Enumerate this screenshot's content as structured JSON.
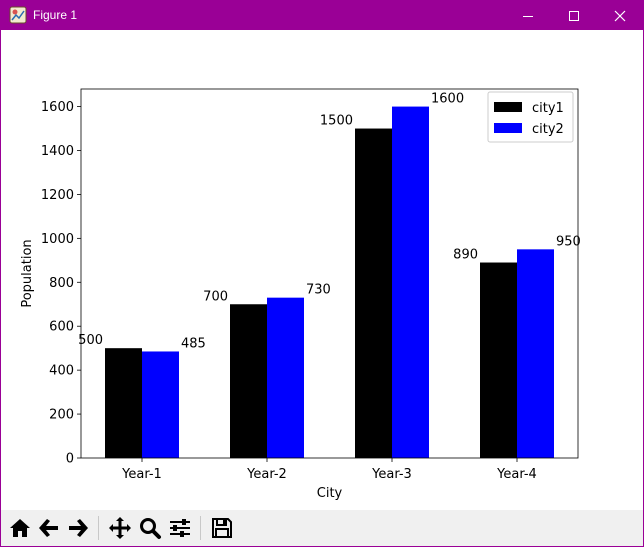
{
  "window": {
    "title": "Figure 1"
  },
  "icons": {
    "app": "matplotlib-figure-icon",
    "minimize": "minimize-icon",
    "maximize": "maximize-icon",
    "close": "close-icon"
  },
  "toolbar": {
    "buttons": [
      {
        "name": "home-icon",
        "action": "Home"
      },
      {
        "name": "back-arrow-icon",
        "action": "Back"
      },
      {
        "name": "forward-arrow-icon",
        "action": "Forward"
      },
      {
        "name": "pan-icon",
        "action": "Pan"
      },
      {
        "name": "zoom-icon",
        "action": "Zoom"
      },
      {
        "name": "configure-subplots-icon",
        "action": "Subplots"
      },
      {
        "name": "save-icon",
        "action": "Save"
      }
    ]
  },
  "chart_data": {
    "type": "bar",
    "categories": [
      "Year-1",
      "Year-2",
      "Year-3",
      "Year-4"
    ],
    "series": [
      {
        "name": "city1",
        "color": "#000000",
        "values": [
          500,
          700,
          1500,
          890
        ]
      },
      {
        "name": "city2",
        "color": "#0000ff",
        "values": [
          485,
          730,
          1600,
          950
        ]
      }
    ],
    "xlabel": "City",
    "ylabel": "Population",
    "ylim": [
      0,
      1680
    ],
    "yticks": [
      0,
      200,
      400,
      600,
      800,
      1000,
      1200,
      1400,
      1600
    ],
    "grid": false,
    "legend": "top-right",
    "data_labels": true
  }
}
